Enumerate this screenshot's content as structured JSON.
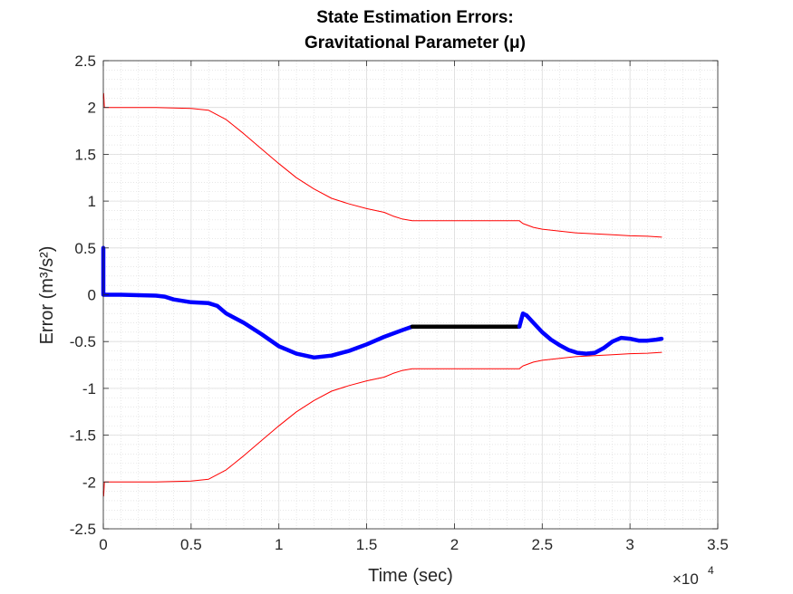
{
  "chart_data": {
    "type": "line",
    "title": "State Estimation Errors:",
    "subtitle": "Gravitational Parameter (μ)",
    "xlabel": "Time (sec)",
    "ylabel": "Error (m³/s²)",
    "xlim": [
      0,
      35000
    ],
    "ylim": [
      -2.5,
      2.5
    ],
    "x_ticks": [
      0,
      5000,
      10000,
      15000,
      20000,
      25000,
      30000,
      35000
    ],
    "x_tick_labels": [
      "0",
      "0.5",
      "1",
      "1.5",
      "2",
      "2.5",
      "3",
      "3.5"
    ],
    "x_multiplier": "×10",
    "x_multiplier_exponent": "4",
    "y_ticks": [
      2.5,
      2,
      1.5,
      1,
      0.5,
      0,
      -0.5,
      -1,
      -1.5,
      -2,
      -2.5
    ],
    "y_tick_labels": [
      "2.5",
      "2",
      "1.5",
      "1",
      "0.5",
      "0",
      "-0.5",
      "-1",
      "-1.5",
      "-2",
      "-2.5"
    ],
    "grid": true,
    "minor_grid": true,
    "colors": {
      "bounds": "#ff0000",
      "estimate": "#0000ff",
      "gap": "#000000"
    },
    "series": [
      {
        "style": "bound-upper",
        "x": [
          0,
          20,
          60,
          200,
          1000,
          3000,
          5000,
          6000,
          7000,
          8000,
          9000,
          10000,
          11000,
          12000,
          13000,
          14000,
          15000,
          16000,
          16500,
          17000,
          17600,
          18000,
          20000,
          22000,
          23500,
          23700,
          23900,
          24500,
          25000,
          26000,
          27000,
          28000,
          29000,
          30000,
          31000,
          31800
        ],
        "y": [
          2.1,
          2.15,
          2.0,
          2.0,
          2.0,
          2.0,
          1.99,
          1.97,
          1.87,
          1.72,
          1.56,
          1.4,
          1.25,
          1.13,
          1.03,
          0.97,
          0.92,
          0.88,
          0.84,
          0.81,
          0.79,
          0.79,
          0.79,
          0.79,
          0.79,
          0.79,
          0.76,
          0.72,
          0.7,
          0.68,
          0.66,
          0.65,
          0.64,
          0.63,
          0.625,
          0.615
        ]
      },
      {
        "style": "bound-lower",
        "x": [
          0,
          20,
          60,
          200,
          1000,
          3000,
          5000,
          6000,
          7000,
          8000,
          9000,
          10000,
          11000,
          12000,
          13000,
          14000,
          15000,
          16000,
          16500,
          17000,
          17600,
          18000,
          20000,
          22000,
          23500,
          23700,
          23900,
          24500,
          25000,
          26000,
          27000,
          28000,
          29000,
          30000,
          31000,
          31800
        ],
        "y": [
          -2.1,
          -2.15,
          -2.0,
          -2.0,
          -2.0,
          -2.0,
          -1.99,
          -1.97,
          -1.87,
          -1.72,
          -1.56,
          -1.4,
          -1.25,
          -1.13,
          -1.03,
          -0.97,
          -0.92,
          -0.88,
          -0.84,
          -0.81,
          -0.79,
          -0.79,
          -0.79,
          -0.79,
          -0.79,
          -0.79,
          -0.76,
          -0.72,
          -0.7,
          -0.68,
          -0.66,
          -0.65,
          -0.64,
          -0.63,
          -0.625,
          -0.615
        ]
      },
      {
        "style": "estimate",
        "x": [
          0,
          0,
          0,
          0,
          20,
          100,
          1000,
          2000,
          3000,
          3500,
          4000,
          5000,
          6000,
          6500,
          7000,
          8000,
          9000,
          10000,
          11000,
          12000,
          13000,
          14000,
          15000,
          16000,
          17000,
          17600
        ],
        "y": [
          0.5,
          0.2,
          0.5,
          0.0,
          0.0,
          0.0,
          0.0,
          -0.005,
          -0.01,
          -0.02,
          -0.05,
          -0.08,
          -0.09,
          -0.12,
          -0.2,
          -0.3,
          -0.42,
          -0.55,
          -0.63,
          -0.67,
          -0.65,
          -0.6,
          -0.53,
          -0.45,
          -0.38,
          -0.34
        ]
      },
      {
        "style": "gap",
        "x": [
          17600,
          23700
        ],
        "y": [
          -0.34,
          -0.34
        ]
      },
      {
        "style": "estimate",
        "x": [
          23700,
          23900,
          24100,
          24500,
          25000,
          25500,
          26000,
          26500,
          27000,
          27500,
          28000,
          28500,
          29000,
          29500,
          30000,
          30500,
          31000,
          31500,
          31800
        ],
        "y": [
          -0.34,
          -0.2,
          -0.22,
          -0.3,
          -0.4,
          -0.48,
          -0.54,
          -0.59,
          -0.62,
          -0.63,
          -0.62,
          -0.57,
          -0.5,
          -0.46,
          -0.47,
          -0.49,
          -0.49,
          -0.48,
          -0.47
        ]
      }
    ]
  }
}
